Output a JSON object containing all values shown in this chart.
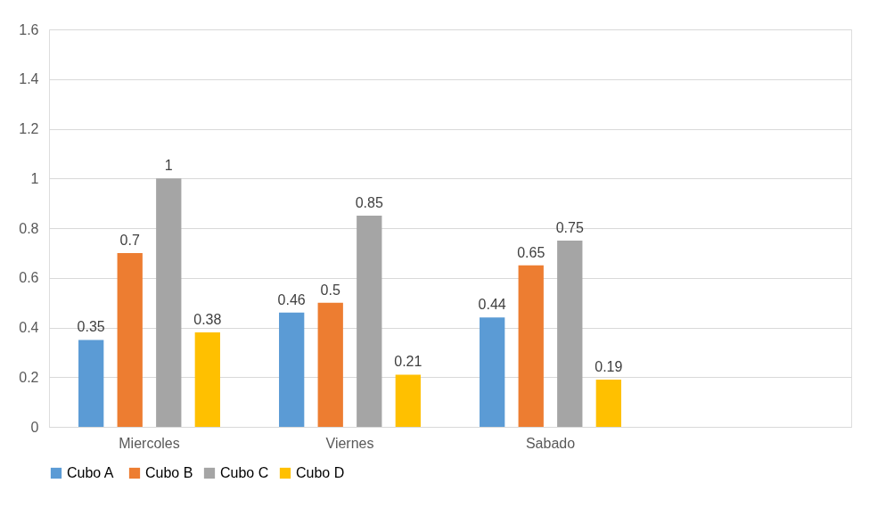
{
  "chart_data": {
    "type": "bar",
    "categories": [
      "Miercoles",
      "Viernes",
      "Sabado",
      null
    ],
    "series": [
      {
        "name": "Cubo  A",
        "color": "#5b9bd5",
        "values": [
          0.35,
          0.46,
          0.44,
          null
        ]
      },
      {
        "name": "Cubo B",
        "color": "#ed7d31",
        "values": [
          0.7,
          0.5,
          0.65,
          null
        ]
      },
      {
        "name": "Cubo C",
        "color": "#a5a5a5",
        "values": [
          1,
          0.85,
          0.75,
          null
        ]
      },
      {
        "name": "Cubo D",
        "color": "#ffc000",
        "values": [
          0.38,
          0.21,
          0.19,
          null
        ]
      }
    ],
    "ylim": [
      0,
      1.6
    ],
    "yticks": [
      0,
      0.2,
      0.4,
      0.6,
      0.8,
      1,
      1.2,
      1.4,
      1.6
    ],
    "grid": "y",
    "legend": "bottom",
    "data_labels": true
  }
}
